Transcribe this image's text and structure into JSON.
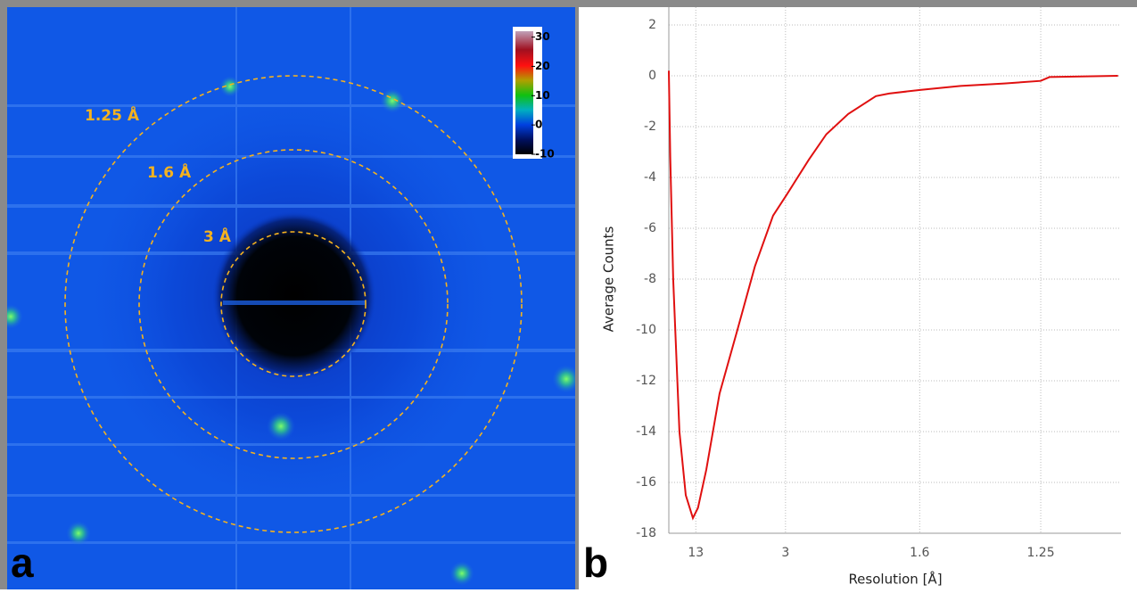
{
  "chart_data": [
    {
      "type": "image",
      "panel": "a",
      "ring_labels": [
        "3 Å",
        "1.6 Å",
        "1.25 Å"
      ],
      "clim": [
        -10,
        32
      ],
      "cticks": [
        -10,
        0,
        10,
        20,
        30
      ]
    },
    {
      "type": "line",
      "panel": "b",
      "xlabel": "Resolution [Å]",
      "ylabel": "Average Counts",
      "x": [
        0,
        1,
        3,
        7.3,
        11.6,
        16.5,
        20,
        25.7,
        34.8,
        47,
        59,
        71.5,
        80.6,
        96,
        108,
        123,
        142,
        151,
        173,
        200,
        230,
        255,
        261,
        308
      ],
      "values": [
        0.2,
        -3.2,
        -8,
        -14,
        -16.5,
        -17.4,
        -17,
        -15.5,
        -12.5,
        -10,
        -7.5,
        -5.5,
        -4.7,
        -3.3,
        -2.3,
        -1.5,
        -0.8,
        -0.7,
        -0.55,
        -0.4,
        -0.3,
        -0.2,
        -0.05,
        0
      ],
      "color": "#e01010",
      "xlim": [
        0,
        310
      ],
      "xticks": [
        {
          "value": 18.5,
          "label": "13"
        },
        {
          "value": 80,
          "label": "3"
        },
        {
          "value": 172,
          "label": "1.6"
        },
        {
          "value": 255,
          "label": "1.25"
        }
      ],
      "ylim": [
        -18,
        2
      ],
      "yticks": [
        -18,
        -16,
        -14,
        -12,
        -10,
        -8,
        -6,
        -4,
        -2,
        0,
        2
      ],
      "grid": true
    }
  ]
}
